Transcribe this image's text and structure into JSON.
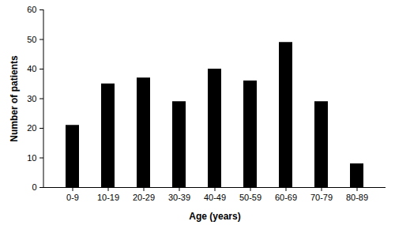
{
  "chart_data": {
    "type": "bar",
    "categories": [
      "0-9",
      "10-19",
      "20-29",
      "30-39",
      "40-49",
      "50-59",
      "60-69",
      "70-79",
      "80-89"
    ],
    "values": [
      21,
      35,
      37,
      29,
      40,
      36,
      49,
      29,
      8
    ],
    "color": "#000000",
    "xlabel": "Age (years)",
    "ylabel": "Number of patients",
    "ylim": [
      0,
      60
    ],
    "yticks": [
      0,
      10,
      20,
      30,
      40,
      50,
      60
    ],
    "grid": false
  }
}
